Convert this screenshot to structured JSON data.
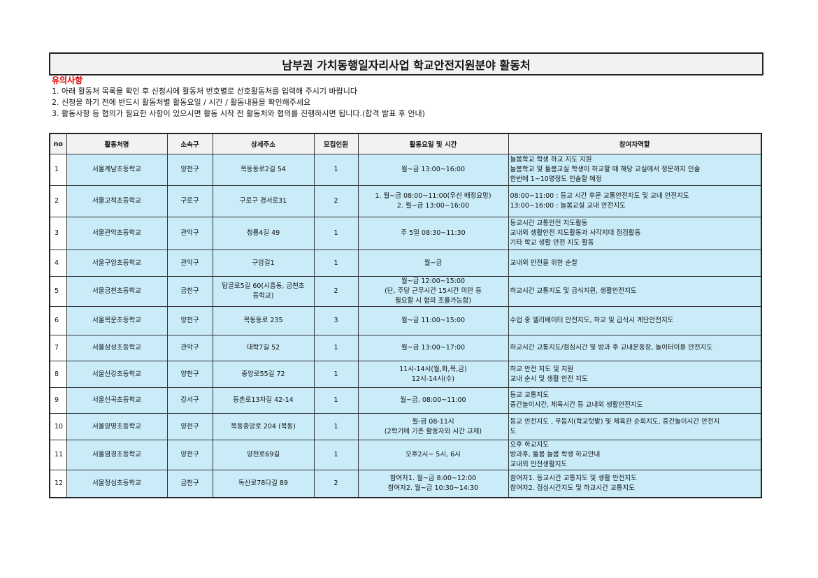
{
  "title": "남부권 가치동행일자리사업 학교안전지원분야 활동처",
  "notice": {
    "heading": "유의사항",
    "items": [
      "1. 아래 활동처 목록을 확인 후 신청시에 활동처 번호별로 선호활동처를 입력해 주시기 바랍니다",
      "2. 신청을 하기 전에 반드시 활동처별 활동요일 / 시간 / 활동내용을 확인해주세요",
      "3. 활동사항 등 협의가 필요한 사항이 있으시면 활동 시작 전 활동처와 협의를 진행하시면 됩니다.(합격 발표 후 안내)"
    ]
  },
  "table": {
    "headers": [
      "no",
      "활동처명",
      "소속구",
      "상세주소",
      "모집인원",
      "활동요일 및 시간",
      "참여자역할"
    ],
    "rows": [
      {
        "no": "1",
        "name": "서울계남초등학교",
        "district": "양천구",
        "address": [
          "목동동로2길 54"
        ],
        "count": "1",
        "schedule": [
          "월~금 13:00~16:00"
        ],
        "role": [
          "늘봄학교 학생 하교 지도 지원",
          "늘봄학교 및 돌봄교실 학생이 하교할 때 해당 교실에서 정문까지 인솔",
          "한번에 1~10명정도 인솔할 예정"
        ]
      },
      {
        "no": "2",
        "name": "서울고척초등학교",
        "district": "구로구",
        "address": [
          "구로구 경서로31"
        ],
        "count": "2",
        "schedule": [
          "1. 월~금 08:00~11:00(우선 배정요망)",
          "2. 월~금 13:00~16:00"
        ],
        "role": [
          "08:00~11:00 : 등교 시간 후문 교통안전지도 및 교내 안전지도",
          "13:00~16:00 :  늘봄교실 교내 안전지도"
        ]
      },
      {
        "no": "3",
        "name": "서울관악초등학교",
        "district": "관악구",
        "address": [
          "청룡4길 49"
        ],
        "count": "1",
        "schedule": [
          "주 5일 08:30~11:30"
        ],
        "role": [
          "등교시간 교통안전 지도활동",
          "교내외 생활안전 지도활동과 사각지대 점검활동",
          "기타 학교 생활 안전 지도 활동"
        ]
      },
      {
        "no": "4",
        "name": "서울구암초등학교",
        "district": "관악구",
        "address": [
          "구암길1"
        ],
        "count": "1",
        "schedule": [
          "월~금"
        ],
        "role": [
          "교내외 안전을 위한 순찰"
        ]
      },
      {
        "no": "5",
        "name": "서울금천초등학교",
        "district": "금천구",
        "address": [
          "탑골로5길 60(시흥동, 금천초",
          "등학교)"
        ],
        "count": "2",
        "schedule": [
          "월~금 12:00~15:00",
          "(단, 주당 근무시간 15시간 미만 등",
          "필요할 시 협의 조율가능함)"
        ],
        "role": [
          "하교시간 교통지도 및 급식지원, 생활안전지도"
        ]
      },
      {
        "no": "6",
        "name": "서울목운초등학교",
        "district": "양천구",
        "address": [
          "목동동로 235"
        ],
        "count": "3",
        "schedule": [
          "월~금 11:00~15:00"
        ],
        "role": [
          "수업 중 엘리베이터 안전지도, 하교 및 급식시 계단안전지도"
        ]
      },
      {
        "no": "7",
        "name": "서울삼성초등학교",
        "district": "관악구",
        "address": [
          "대학7길 52"
        ],
        "count": "1",
        "schedule": [
          "월~금 13:00~17:00"
        ],
        "role": [
          "하교시간 교통지도/점심시간 및 방과 후 교내운동장, 놀이터이용 안전지도"
        ]
      },
      {
        "no": "8",
        "name": "서울신강초등학교",
        "district": "양천구",
        "address": [
          "중앙로55길 72"
        ],
        "count": "1",
        "schedule": [
          "11시-14시(월,화,목,금)",
          "12시-14시(수)"
        ],
        "role": [
          "하교 안전 지도 및 지원",
          "교내 순시 및 생활 안전 지도"
        ]
      },
      {
        "no": "9",
        "name": "서울신곡초등학교",
        "district": "강서구",
        "address": [
          "등촌로13자길 42-14"
        ],
        "count": "1",
        "schedule": [
          "월~금, 08:00~11:00"
        ],
        "role": [
          "등교 교통지도",
          "중간놀이시간, 체육시간 등 교내외 생활안전지도"
        ]
      },
      {
        "no": "10",
        "name": "서울양명초등학교",
        "district": "양천구",
        "address": [
          "목동중앙로 204 (목동)"
        ],
        "count": "1",
        "schedule": [
          "월-금 08-11시",
          "(2학기에 기존 활동자와 시간 교체)"
        ],
        "role": [
          "등교 안전지도 , 우듬지(학교텃밭) 및 체육관 순회지도, 중간놀이시간 안전지",
          "도"
        ]
      },
      {
        "no": "11",
        "name": "서울염경초등학교",
        "district": "양천구",
        "address": [
          "양천로69길"
        ],
        "count": "1",
        "schedule": [
          "오후2시~ 5시, 6시"
        ],
        "role": [
          "오후 하교지도",
          "방과후, 돌봄 늘봄 학생 하교안내",
          "교내외 안전생활지도"
        ]
      },
      {
        "no": "12",
        "name": "서울정심초등학교",
        "district": "금천구",
        "address": [
          "독산로78다길 89"
        ],
        "count": "2",
        "schedule": [
          "참여자1. 월~금 8:00~12:00",
          "참여자2. 월~금 10:30~14:30"
        ],
        "role": [
          "참여자1. 등교시간 교통지도 및 생활 안전지도",
          "참여자2. 점심시간지도 및 하교시간 교통지도"
        ]
      }
    ]
  },
  "colors": {
    "row_fill": "#c9ecf8",
    "header_fill": "#f2f2f2",
    "notice": "#e00000"
  }
}
